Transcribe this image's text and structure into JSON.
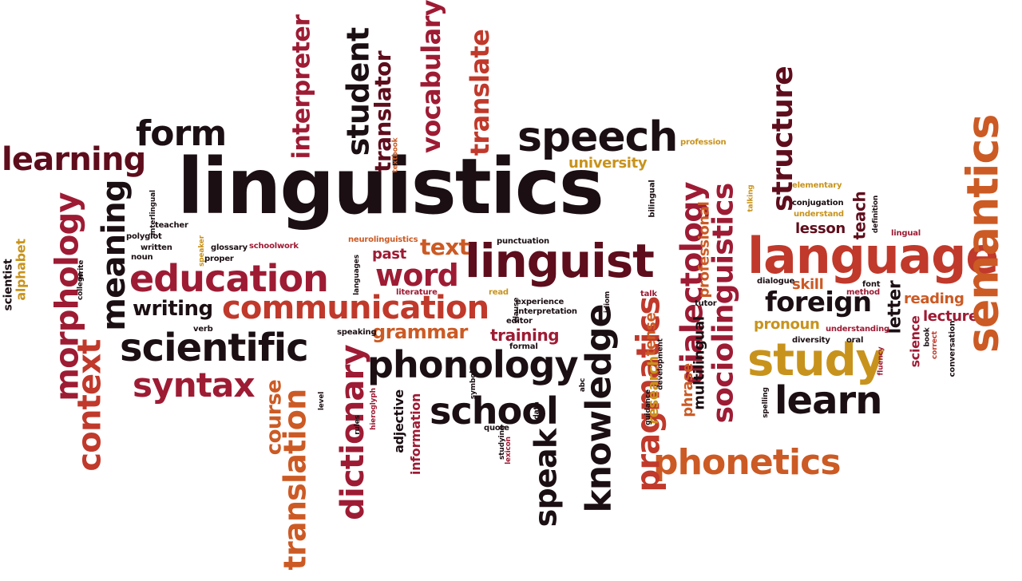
{
  "words": [
    {
      "id": "linguistics",
      "text": "linguistics"
    },
    {
      "id": "speech",
      "text": "speech"
    },
    {
      "id": "form",
      "text": "form"
    },
    {
      "id": "learning",
      "text": "learning"
    },
    {
      "id": "semantics",
      "text": "semantics"
    },
    {
      "id": "language",
      "text": "language"
    },
    {
      "id": "linguist",
      "text": "linguist"
    },
    {
      "id": "education",
      "text": "education"
    },
    {
      "id": "communication",
      "text": "communication"
    },
    {
      "id": "scientific",
      "text": "scientific"
    },
    {
      "id": "syntax",
      "text": "syntax"
    },
    {
      "id": "phonology",
      "text": "phonology"
    },
    {
      "id": "school",
      "text": "school"
    },
    {
      "id": "phonetics",
      "text": "phonetics"
    },
    {
      "id": "study",
      "text": "study"
    },
    {
      "id": "learn",
      "text": "learn"
    },
    {
      "id": "foreign",
      "text": "foreign"
    },
    {
      "id": "word",
      "text": "word"
    },
    {
      "id": "text",
      "text": "text"
    },
    {
      "id": "writing",
      "text": "writing"
    },
    {
      "id": "grammar",
      "text": "grammar"
    },
    {
      "id": "training",
      "text": "training"
    },
    {
      "id": "university",
      "text": "university"
    },
    {
      "id": "lesson",
      "text": "lesson"
    },
    {
      "id": "skill",
      "text": "skill"
    },
    {
      "id": "pronoun",
      "text": "pronoun"
    },
    {
      "id": "reading",
      "text": "reading"
    },
    {
      "id": "lecture",
      "text": "lecture"
    },
    {
      "id": "past",
      "text": "past"
    },
    {
      "id": "meaning",
      "text": "meaning"
    },
    {
      "id": "morphology",
      "text": "morphology"
    },
    {
      "id": "context",
      "text": "context"
    },
    {
      "id": "alphabet",
      "text": "alphabet"
    },
    {
      "id": "scientist",
      "text": "scientist"
    },
    {
      "id": "interpreter",
      "text": "interpreter"
    },
    {
      "id": "student",
      "text": "student"
    },
    {
      "id": "translator",
      "text": "translator"
    },
    {
      "id": "vocabulary",
      "text": "vocabulary"
    },
    {
      "id": "translate",
      "text": "translate"
    },
    {
      "id": "dictionary",
      "text": "dictionary"
    },
    {
      "id": "translation",
      "text": "translation"
    },
    {
      "id": "course",
      "text": "course"
    },
    {
      "id": "knowledge",
      "text": "knowledge"
    },
    {
      "id": "speak",
      "text": "speak"
    },
    {
      "id": "pragmatics",
      "text": "pragmatics"
    },
    {
      "id": "dialectology",
      "text": "dialectology"
    },
    {
      "id": "sociolinguistics",
      "text": "sociolinguistics"
    },
    {
      "id": "structure",
      "text": "structure"
    },
    {
      "id": "professional",
      "text": "professional"
    },
    {
      "id": "multilingual",
      "text": "multilingual"
    },
    {
      "id": "phrase",
      "text": "phrase"
    },
    {
      "id": "research",
      "text": "research"
    },
    {
      "id": "tense",
      "text": "tense"
    },
    {
      "id": "teach",
      "text": "teach"
    },
    {
      "id": "letter",
      "text": "letter"
    },
    {
      "id": "science",
      "text": "science"
    },
    {
      "id": "adjective",
      "text": "adjective"
    },
    {
      "id": "information",
      "text": "information"
    },
    {
      "id": "textbook",
      "text": "textbook"
    },
    {
      "id": "profession",
      "text": "profession"
    },
    {
      "id": "bilingual",
      "text": "bilingual"
    },
    {
      "id": "elementary",
      "text": "elementary"
    },
    {
      "id": "conjugation",
      "text": "conjugation"
    },
    {
      "id": "understand",
      "text": "understand"
    },
    {
      "id": "talking",
      "text": "talking"
    },
    {
      "id": "definition",
      "text": "definition"
    },
    {
      "id": "lingual",
      "text": "lingual"
    },
    {
      "id": "dialogue",
      "text": "dialogue"
    },
    {
      "id": "font",
      "text": "font"
    },
    {
      "id": "method",
      "text": "method"
    },
    {
      "id": "understanding",
      "text": "understanding"
    },
    {
      "id": "diversity",
      "text": "diversity"
    },
    {
      "id": "oral",
      "text": "oral"
    },
    {
      "id": "fluency",
      "text": "fluency"
    },
    {
      "id": "book",
      "text": "book"
    },
    {
      "id": "correct",
      "text": "correct"
    },
    {
      "id": "conversation",
      "text": "conversation"
    },
    {
      "id": "spelling",
      "text": "spelling"
    },
    {
      "id": "library",
      "text": "library"
    },
    {
      "id": "teacher",
      "text": "teacher"
    },
    {
      "id": "interlingual",
      "text": "interlingual"
    },
    {
      "id": "polyglot",
      "text": "polyglot"
    },
    {
      "id": "written",
      "text": "written"
    },
    {
      "id": "noun",
      "text": "noun"
    },
    {
      "id": "speaker",
      "text": "speaker"
    },
    {
      "id": "glossary",
      "text": "glossary"
    },
    {
      "id": "schoolwork",
      "text": "schoolwork"
    },
    {
      "id": "proper",
      "text": "proper"
    },
    {
      "id": "neurolinguistics",
      "text": "neurolinguistics"
    },
    {
      "id": "punctuation",
      "text": "punctuation"
    },
    {
      "id": "languages",
      "text": "languages"
    },
    {
      "id": "verb",
      "text": "verb"
    },
    {
      "id": "speaking",
      "text": "speaking"
    },
    {
      "id": "college",
      "text": "college"
    },
    {
      "id": "write",
      "text": "write"
    },
    {
      "id": "literature",
      "text": "literature"
    },
    {
      "id": "read",
      "text": "read"
    },
    {
      "id": "clause",
      "text": "clause"
    },
    {
      "id": "experience",
      "text": "experience"
    },
    {
      "id": "interpretation",
      "text": "interpretation"
    },
    {
      "id": "editor",
      "text": "editor"
    },
    {
      "id": "formal",
      "text": "formal"
    },
    {
      "id": "idiom",
      "text": "idiom"
    },
    {
      "id": "talk",
      "text": "talk"
    },
    {
      "id": "tutor",
      "text": "tutor"
    },
    {
      "id": "development",
      "text": "development"
    },
    {
      "id": "abc",
      "text": "abc"
    },
    {
      "id": "guidance",
      "text": "guidance"
    },
    {
      "id": "data",
      "text": "data"
    },
    {
      "id": "symbol",
      "text": "symbol"
    },
    {
      "id": "quote",
      "text": "quote"
    },
    {
      "id": "studying",
      "text": "studying"
    },
    {
      "id": "lexicon",
      "text": "lexicon"
    },
    {
      "id": "hieroglyph",
      "text": "hieroglyph"
    },
    {
      "id": "rules",
      "text": "rules"
    },
    {
      "id": "level",
      "text": "level"
    }
  ]
}
